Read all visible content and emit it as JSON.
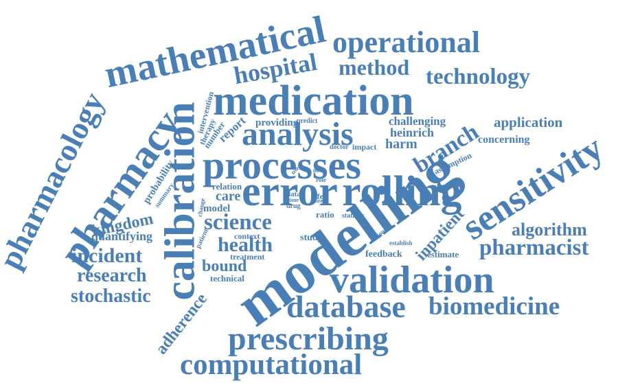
{
  "color": "#4a7fb5",
  "words": {
    "mathematical": "mathematical",
    "operational": "operational",
    "hospital": "hospital",
    "method": "method",
    "technology": "technology",
    "medication": "medication",
    "pharmacology": "pharmacology",
    "pharmacy": "pharmacy",
    "calibration": "calibration",
    "intervention": "intervention",
    "therapy": "therapy",
    "number": "number",
    "report": "report",
    "providing": "providing",
    "predict": "predict",
    "challenging": "challenging",
    "application": "application",
    "sensitivity": "sensitivity",
    "analysis": "analysis",
    "heinrich": "heinrich",
    "branch": "branch",
    "concerning": "concerning",
    "harm": "harm",
    "doctor": "doctor",
    "impact": "impact",
    "assumption": "assumption",
    "processes": "processes",
    "probability": "probability",
    "summary": "summary",
    "used": "used",
    "note": "note",
    "role": "role",
    "relation": "relation",
    "error": "error",
    "rolling": "rolling",
    "care": "care",
    "data": "data",
    "life": "life",
    "case": "case",
    "time": "time",
    "drug": "drug",
    "change": "change",
    "model": "model",
    "kingdom": "kingdom",
    "science": "science",
    "ratio": "ratio",
    "statistic": "statistic",
    "inpatient": "inpatient",
    "algorithm": "algorithm",
    "quantifying": "quantifying",
    "patient": "patient",
    "context": "context",
    "study": "study",
    "serious": "serious",
    "establish": "establish",
    "pharmacist": "pharmacist",
    "health": "health",
    "incident": "incident",
    "treatment": "treatment",
    "modelling": "modelling",
    "feedback": "feedback",
    "estimate": "estimate",
    "bound": "bound",
    "research": "research",
    "technical": "technical",
    "validation": "validation",
    "stochastic": "stochastic",
    "adherence": "adherence",
    "database": "database",
    "biomedicine": "biomedicine",
    "prescribing": "prescribing",
    "computational": "computational"
  }
}
